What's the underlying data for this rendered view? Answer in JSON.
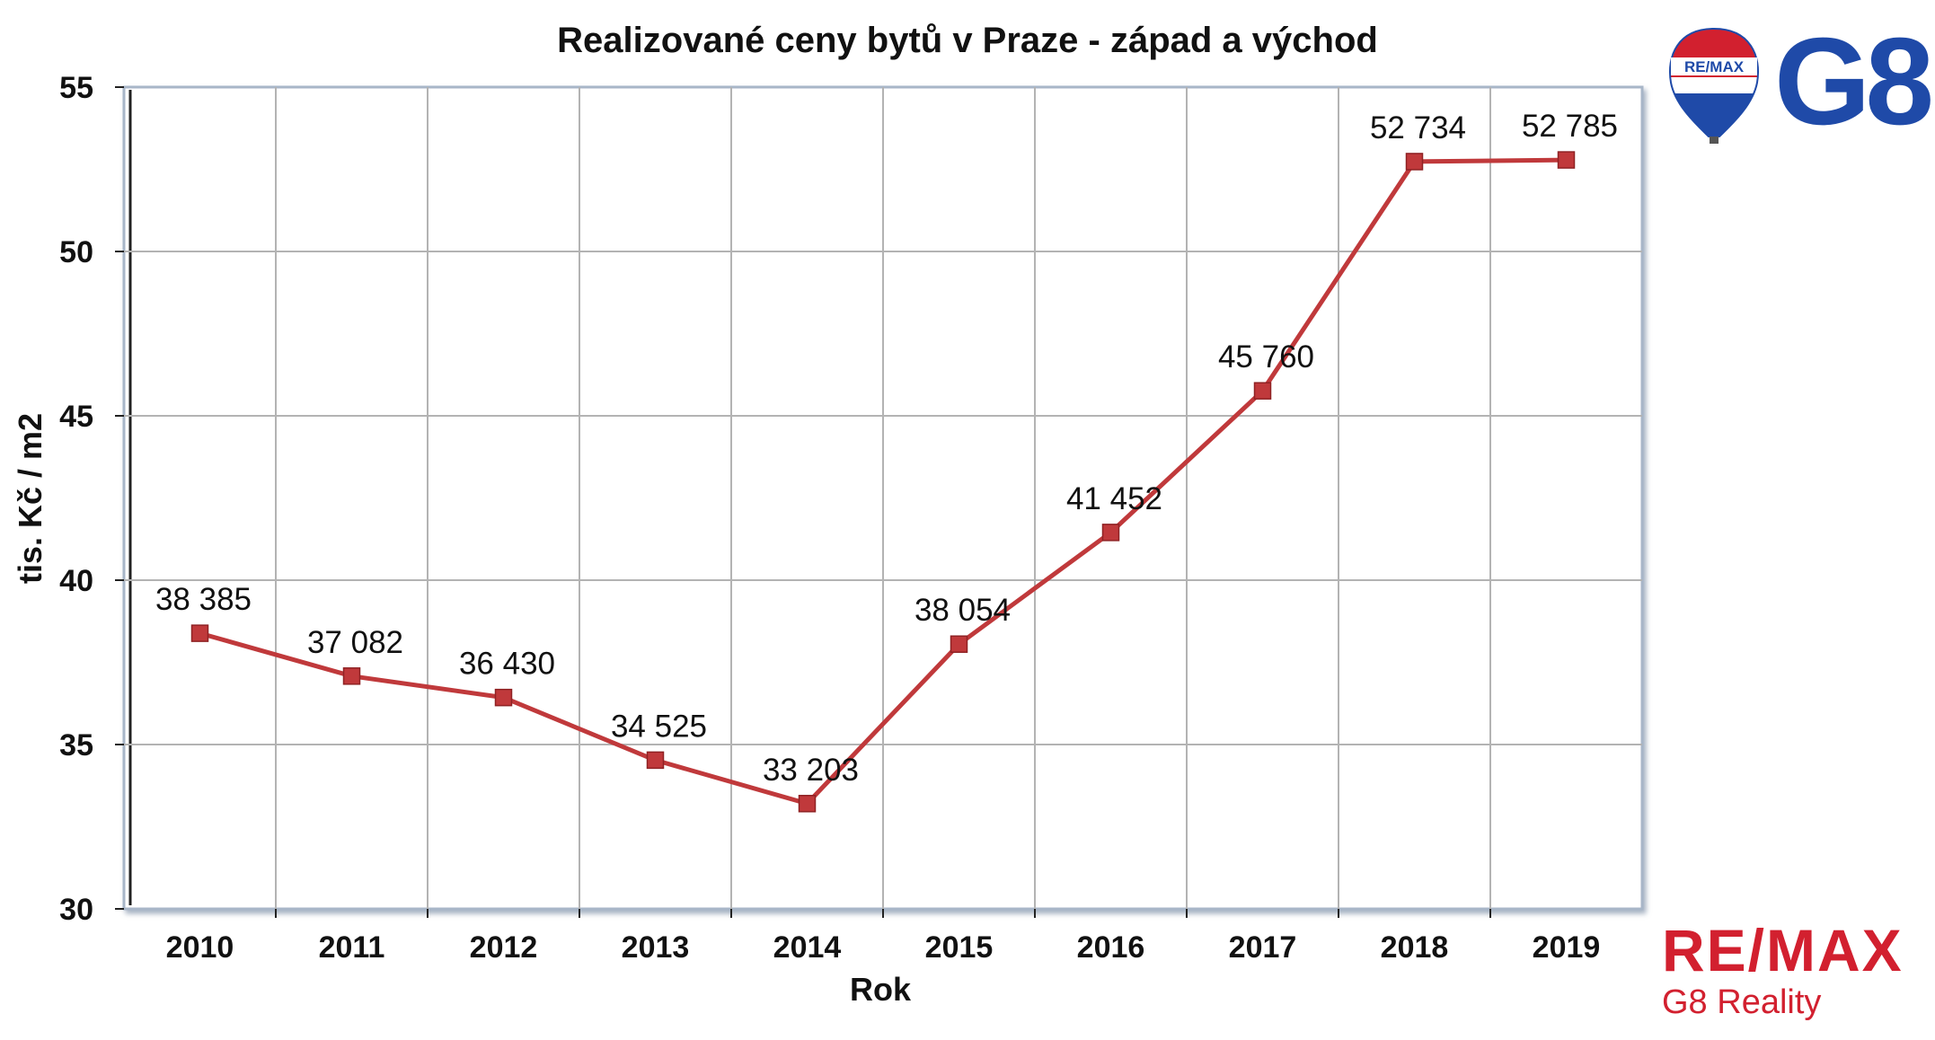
{
  "chart_data": {
    "type": "line",
    "title": "Realizované ceny bytů v Praze - západ a východ",
    "xlabel": "Rok",
    "ylabel": "tis. Kč / m2",
    "ylim": [
      30,
      55
    ],
    "yticks": [
      30,
      35,
      40,
      45,
      50,
      55
    ],
    "categories": [
      "2010",
      "2011",
      "2012",
      "2013",
      "2014",
      "2015",
      "2016",
      "2017",
      "2018",
      "2019"
    ],
    "values": [
      38.385,
      37.082,
      36.43,
      34.525,
      33.203,
      38.054,
      41.452,
      45.76,
      52.734,
      52.785
    ],
    "data_labels": [
      "38 385",
      "37 082",
      "36 430",
      "34 525",
      "33 203",
      "38 054",
      "41 452",
      "45 760",
      "52 734",
      "52 785"
    ],
    "grid": true,
    "line_color": "#c0393b",
    "marker": "square"
  },
  "branding": {
    "balloon_logo_text": "RE/MAX",
    "g8_logo_text": "G8",
    "footer_brand": "RE/MAX",
    "footer_subtitle": "G8 Reality",
    "brand_color": "#d2202f",
    "g8_color": "#1f4aa8"
  }
}
